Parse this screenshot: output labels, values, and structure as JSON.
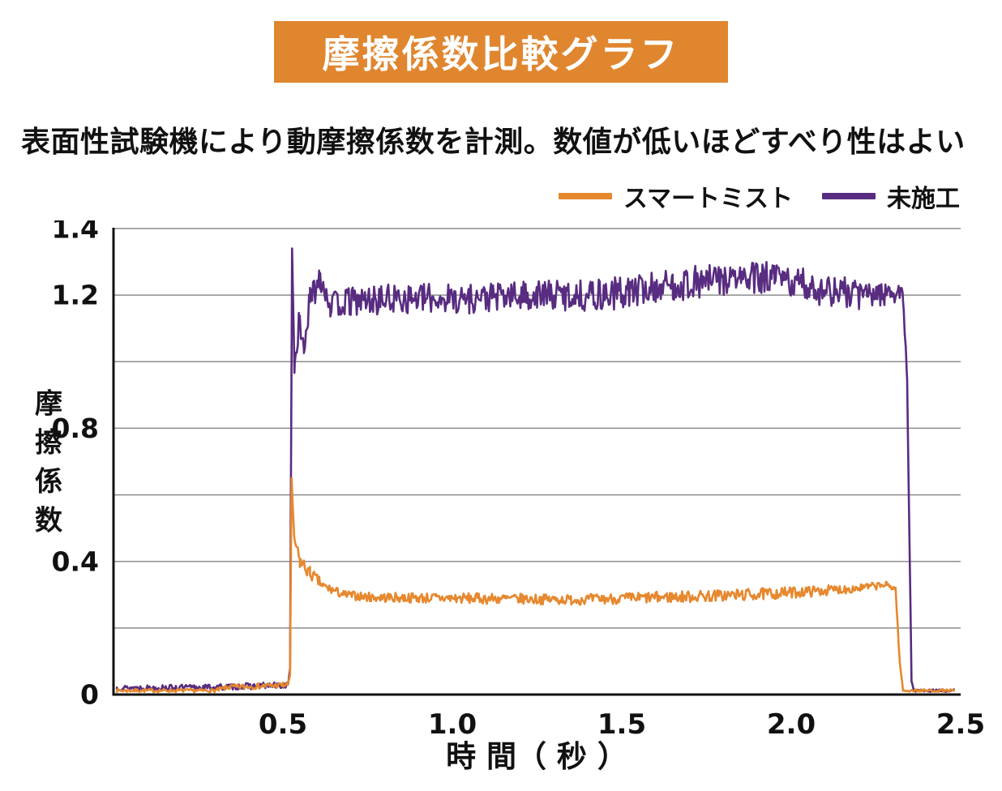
{
  "header": {
    "title": "摩擦係数比較グラフ",
    "banner_color": "#E0862F",
    "title_color": "#ffffff"
  },
  "subtitle": "表面性試験機により動摩擦係数を計測。数値が低いほどすべり性はよい",
  "legend": {
    "items": [
      {
        "key": "smartmist",
        "label": "スマートミスト",
        "color": "#E6882E"
      },
      {
        "key": "untreated",
        "label": "未施工",
        "color": "#582C80"
      }
    ]
  },
  "chart_data": {
    "type": "line",
    "title": "摩擦係数比較グラフ",
    "subtitle": "表面性試験機により動摩擦係数を計測。数値が低いほどすべり性はよい",
    "xlabel": "時 間（ 秒 ）",
    "ylabel": "摩擦係数",
    "xlim": [
      0,
      2.5
    ],
    "ylim": [
      0,
      1.4
    ],
    "grid": true,
    "legend_position": "top-right",
    "x_ticks": [
      {
        "value": 0.5,
        "label": "0.5"
      },
      {
        "value": 1.0,
        "label": "1.0"
      },
      {
        "value": 1.5,
        "label": "1.5"
      },
      {
        "value": 2.0,
        "label": "2.0"
      },
      {
        "value": 2.5,
        "label": "2.5"
      }
    ],
    "y_ticks": [
      {
        "value": 0,
        "label": "0"
      },
      {
        "value": 0.4,
        "label": "0.4"
      },
      {
        "value": 0.8,
        "label": "0.8"
      },
      {
        "value": 1.2,
        "label": "1.2"
      },
      {
        "value": 1.4,
        "label": "1.4"
      }
    ],
    "gridlines_y": [
      0.2,
      0.4,
      0.6,
      0.8,
      1.0,
      1.2,
      1.4
    ],
    "sampling_step": 0.003,
    "series": [
      {
        "key": "untreated",
        "name": "未施工",
        "color": "#582C80",
        "seed": 13,
        "description": "baseline ~0.02 until 0.52s, spike to 1.34, noisy plateau ~1.18-1.25, drops to ~0.01 at 2.35s",
        "keypoints": [
          [
            0.01,
            0.02,
            0.008
          ],
          [
            0.3,
            0.022,
            0.009
          ],
          [
            0.5,
            0.028,
            0.01
          ],
          [
            0.515,
            0.03,
            0.008
          ],
          [
            0.521,
            0.08,
            0
          ],
          [
            0.527,
            1.34,
            0
          ],
          [
            0.534,
            0.98,
            0.02
          ],
          [
            0.548,
            1.12,
            0.04
          ],
          [
            0.562,
            1.04,
            0.03
          ],
          [
            0.58,
            1.18,
            0.05
          ],
          [
            0.61,
            1.26,
            0.045
          ],
          [
            0.64,
            1.17,
            0.04
          ],
          [
            0.7,
            1.18,
            0.045
          ],
          [
            0.85,
            1.19,
            0.045
          ],
          [
            1.05,
            1.19,
            0.045
          ],
          [
            1.25,
            1.2,
            0.045
          ],
          [
            1.45,
            1.2,
            0.05
          ],
          [
            1.65,
            1.23,
            0.05
          ],
          [
            1.82,
            1.25,
            0.05
          ],
          [
            1.95,
            1.25,
            0.05
          ],
          [
            2.08,
            1.22,
            0.05
          ],
          [
            2.2,
            1.2,
            0.045
          ],
          [
            2.3,
            1.21,
            0.035
          ],
          [
            2.33,
            1.2,
            0.018
          ],
          [
            2.342,
            0.95,
            0.01
          ],
          [
            2.355,
            0.04,
            0.005
          ],
          [
            2.362,
            0.012,
            0.004
          ],
          [
            2.48,
            0.012,
            0.004
          ]
        ]
      },
      {
        "key": "smartmist",
        "name": "スマートミスト",
        "color": "#E6882E",
        "seed": 7,
        "description": "baseline ~0.01 until 0.52s, spike to 0.65, noisy plateau ~0.29 slowly rising to ~0.33, drops to ~0.01 at 2.33s",
        "keypoints": [
          [
            0.01,
            0.012,
            0.005
          ],
          [
            0.3,
            0.012,
            0.005
          ],
          [
            0.34,
            0.022,
            0.008
          ],
          [
            0.5,
            0.028,
            0.009
          ],
          [
            0.515,
            0.03,
            0.007
          ],
          [
            0.521,
            0.06,
            0
          ],
          [
            0.5255,
            0.65,
            0
          ],
          [
            0.533,
            0.47,
            0.01
          ],
          [
            0.55,
            0.4,
            0.025
          ],
          [
            0.58,
            0.365,
            0.02
          ],
          [
            0.62,
            0.325,
            0.015
          ],
          [
            0.68,
            0.3,
            0.013
          ],
          [
            0.76,
            0.292,
            0.014
          ],
          [
            0.95,
            0.29,
            0.016
          ],
          [
            1.15,
            0.288,
            0.016
          ],
          [
            1.35,
            0.285,
            0.015
          ],
          [
            1.55,
            0.29,
            0.017
          ],
          [
            1.75,
            0.296,
            0.018
          ],
          [
            1.92,
            0.302,
            0.018
          ],
          [
            2.06,
            0.31,
            0.016
          ],
          [
            2.2,
            0.32,
            0.013
          ],
          [
            2.28,
            0.33,
            0.01
          ],
          [
            2.308,
            0.318,
            0.007
          ],
          [
            2.32,
            0.1,
            0.004
          ],
          [
            2.33,
            0.012,
            0.004
          ],
          [
            2.48,
            0.012,
            0.004
          ]
        ]
      }
    ]
  }
}
